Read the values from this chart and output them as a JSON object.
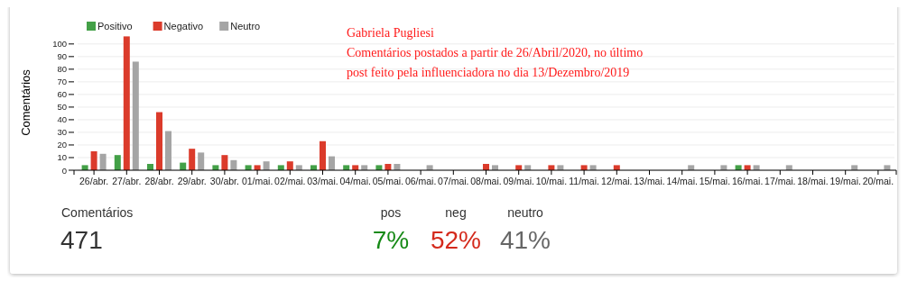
{
  "chart_data": [
    {
      "type": "bar",
      "title": "Gabriela Pugliesi",
      "subtitle": "Comentários postados a partir de 26/Abril/2020, no último post feito pela influenciadora no dia 13/Dezembro/2019",
      "ylabel": "Comentários",
      "categories": [
        "26/abr.",
        "27/abr.",
        "28/abr.",
        "29/abr.",
        "30/abr.",
        "01/mai.",
        "02/mai.",
        "03/mai.",
        "04/mai.",
        "05/mai.",
        "06/mai.",
        "07/mai.",
        "08/mai.",
        "09/mai.",
        "10/mai.",
        "11/mai.",
        "12/mai.",
        "13/mai.",
        "14/mai.",
        "15/mai.",
        "16/mai.",
        "17/mai.",
        "18/mai.",
        "19/mai.",
        "20/mai."
      ],
      "series": [
        {
          "name": "Positivo",
          "color": "#43a047",
          "values": [
            4,
            12,
            5,
            6,
            4,
            4,
            4,
            4,
            4,
            4,
            0,
            0,
            0,
            0,
            0,
            0,
            0,
            0,
            0,
            0,
            4,
            0,
            0,
            0,
            0
          ]
        },
        {
          "name": "Negativo",
          "color": "#db3b2b",
          "values": [
            15,
            106,
            46,
            17,
            12,
            4,
            7,
            23,
            4,
            5,
            0,
            0,
            5,
            4,
            4,
            4,
            4,
            0,
            0,
            0,
            4,
            0,
            0,
            0,
            0
          ]
        },
        {
          "name": "Neutro",
          "color": "#a5a5a5",
          "values": [
            13,
            86,
            31,
            14,
            8,
            7,
            4,
            11,
            4,
            5,
            4,
            0,
            4,
            4,
            4,
            4,
            0,
            0,
            4,
            4,
            4,
            4,
            0,
            4,
            4
          ]
        }
      ],
      "ylim": [
        0,
        107
      ],
      "yticks": [
        0,
        10,
        20,
        30,
        40,
        50,
        60,
        70,
        80,
        90,
        100
      ],
      "grid": "y",
      "legend": "top left"
    },
    {
      "type": "other",
      "title": "Comentários",
      "annotations": [
        "471"
      ],
      "categories": [
        "pos",
        "neg",
        "neutro"
      ],
      "value_labels": [
        "7%",
        "52%",
        "41%"
      ],
      "colors": [
        "#178a17",
        "#d42a1c",
        "#666666"
      ]
    }
  ]
}
